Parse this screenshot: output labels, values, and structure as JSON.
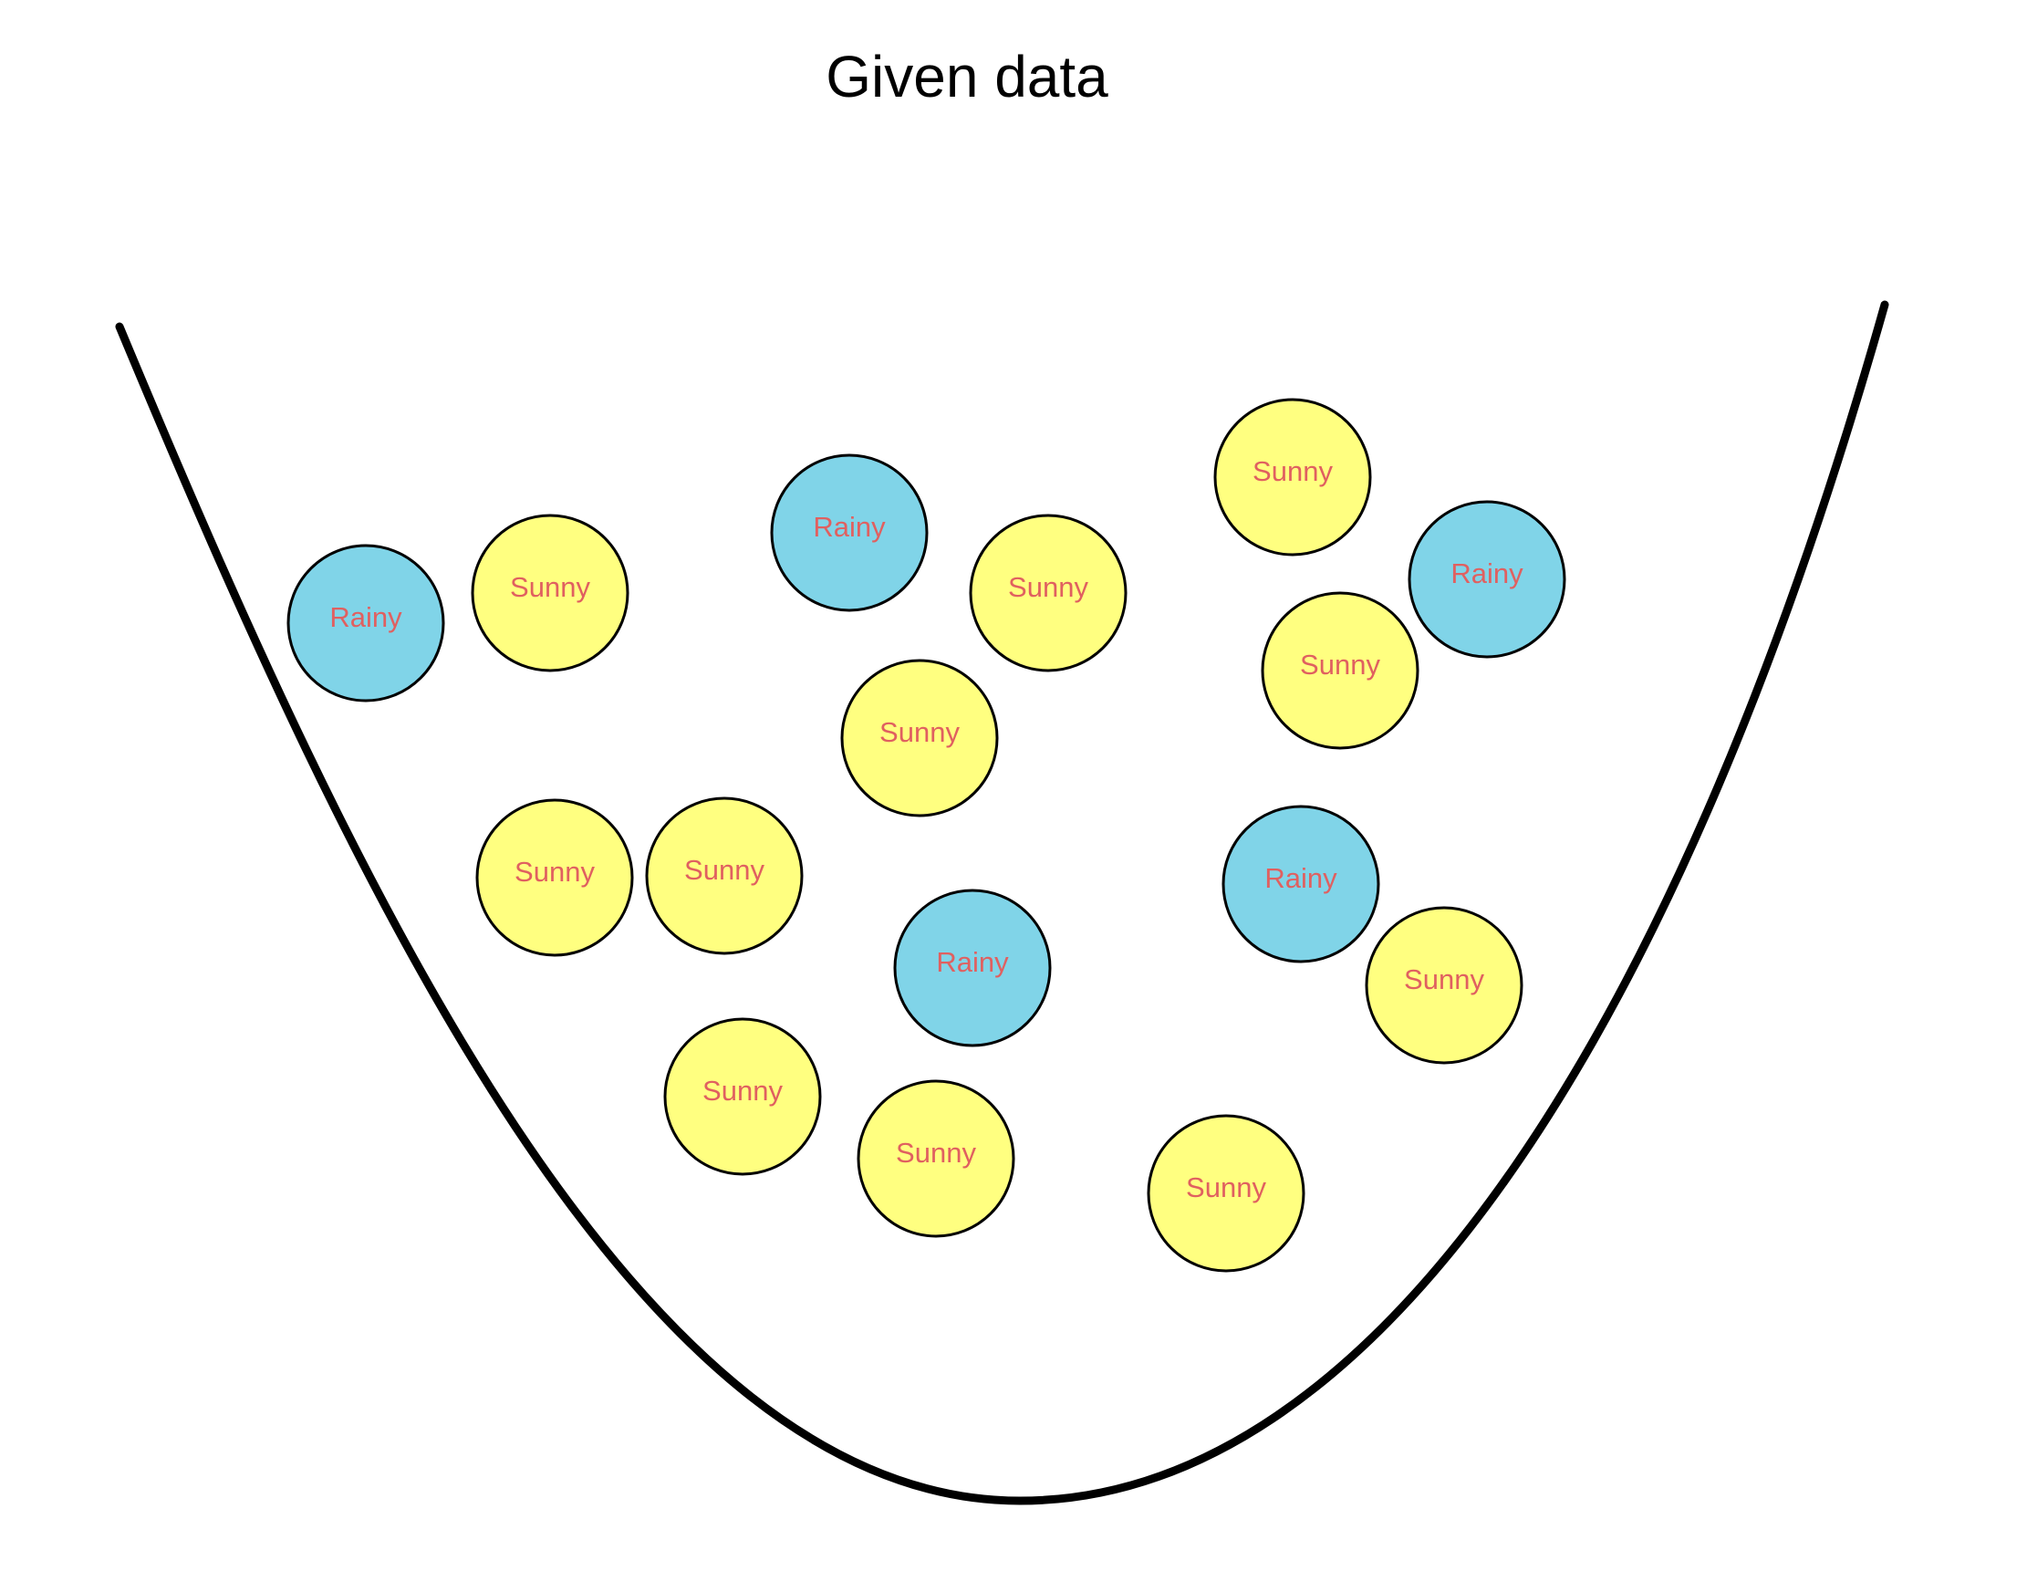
{
  "title": "Given data",
  "colors": {
    "background": "#ffffff",
    "bowl_stroke": "#000000",
    "sunny_fill": "#ffff80",
    "rainy_fill": "#80d4e8",
    "ball_stroke": "#000000",
    "label_text": "#e06060"
  },
  "items": [
    {
      "label": "Rainy"
    },
    {
      "label": "Sunny"
    },
    {
      "label": "Rainy"
    },
    {
      "label": "Sunny"
    },
    {
      "label": "Sunny"
    },
    {
      "label": "Rainy"
    },
    {
      "label": "Sunny"
    },
    {
      "label": "Sunny"
    },
    {
      "label": "Sunny"
    },
    {
      "label": "Sunny"
    },
    {
      "label": "Rainy"
    },
    {
      "label": "Rainy"
    },
    {
      "label": "Sunny"
    },
    {
      "label": "Sunny"
    },
    {
      "label": "Sunny"
    },
    {
      "label": "Sunny"
    }
  ]
}
